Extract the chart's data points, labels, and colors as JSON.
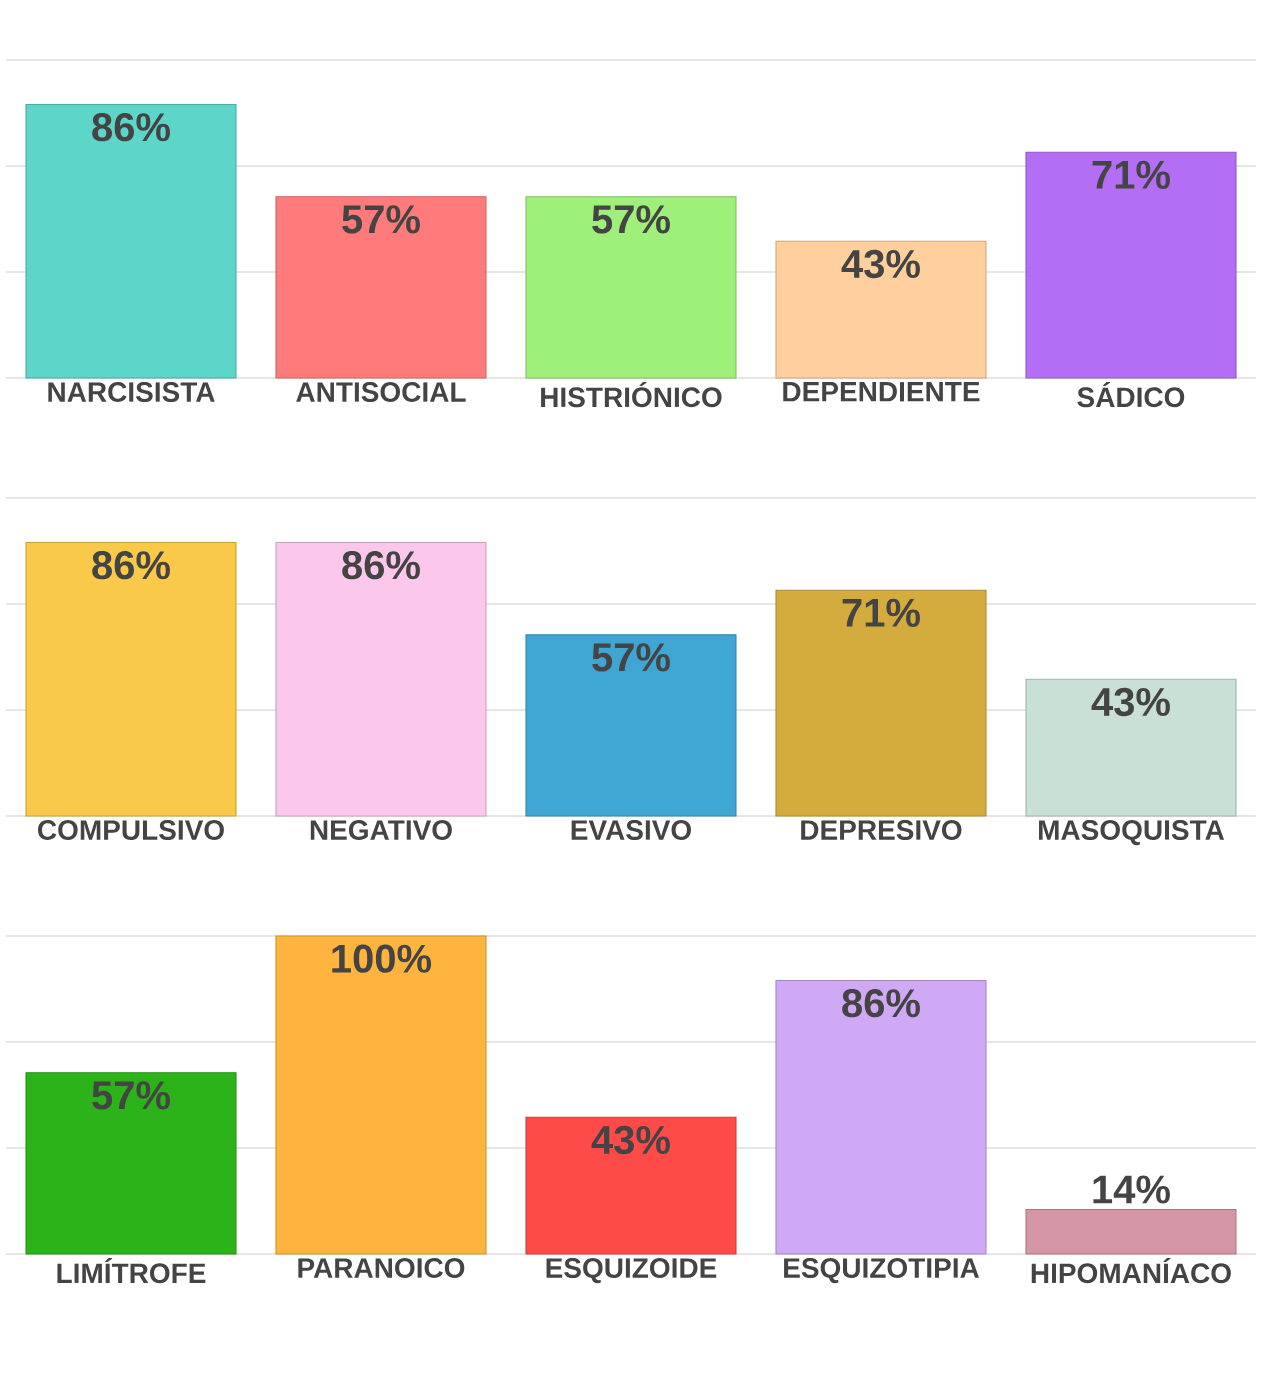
{
  "chart_data": [
    {
      "type": "bar",
      "categories": [
        "NARCISISTA",
        "ANTISOCIAL",
        "HISTRIÓNICO",
        "DEPENDIENTE",
        "SÁDICO"
      ],
      "values": [
        86,
        57,
        57,
        43,
        71
      ],
      "value_labels": [
        "86%",
        "57%",
        "57%",
        "43%",
        "71%"
      ],
      "colors": [
        "#5dd5c8",
        "#ff7b7b",
        "#9ef07a",
        "#ffcf9e",
        "#b36ef5"
      ],
      "ylim": [
        0,
        100
      ],
      "yticks": [
        {
          "value": 0,
          "label": null
        },
        {
          "value": 33.33,
          "label": null
        },
        {
          "value": 66.67,
          "label": null
        },
        {
          "value": 100,
          "label": null
        }
      ],
      "grid": "y",
      "tick_labels": "x"
    },
    {
      "type": "bar",
      "categories": [
        "COMPULSIVO",
        "NEGATIVO",
        "EVASIVO",
        "DEPRESIVO",
        "MASOQUISTA"
      ],
      "values": [
        86,
        86,
        57,
        71,
        43
      ],
      "value_labels": [
        "86%",
        "86%",
        "57%",
        "71%",
        "43%"
      ],
      "colors": [
        "#fbc94a",
        "#fbc8ec",
        "#3fa6d4",
        "#d4ac3e",
        "#c8e0d6"
      ],
      "ylim": [
        0,
        100
      ],
      "yticks": [
        {
          "value": 0,
          "label": null
        },
        {
          "value": 33.33,
          "label": null
        },
        {
          "value": 66.67,
          "label": null
        },
        {
          "value": 100,
          "label": null
        }
      ],
      "grid": "y",
      "tick_labels": "x"
    },
    {
      "type": "bar",
      "categories": [
        "LIMÍTROFE",
        "PARANOICO",
        "ESQUIZOIDE",
        "ESQUIZOTIPIA",
        "HIPOMANÍACO"
      ],
      "values": [
        57,
        100,
        43,
        86,
        14
      ],
      "value_labels": [
        "57%",
        "100%",
        "43%",
        "86%",
        "14%"
      ],
      "colors": [
        "#2db31a",
        "#ffb43e",
        "#ff4a4a",
        "#cfa9f5",
        "#d495a4"
      ],
      "ylim": [
        0,
        100
      ],
      "yticks": [
        {
          "value": 0,
          "label": null
        },
        {
          "value": 33.33,
          "label": null
        },
        {
          "value": 66.67,
          "label": null
        },
        {
          "value": 100,
          "label": null
        }
      ],
      "grid": "y",
      "tick_labels": "x"
    }
  ]
}
